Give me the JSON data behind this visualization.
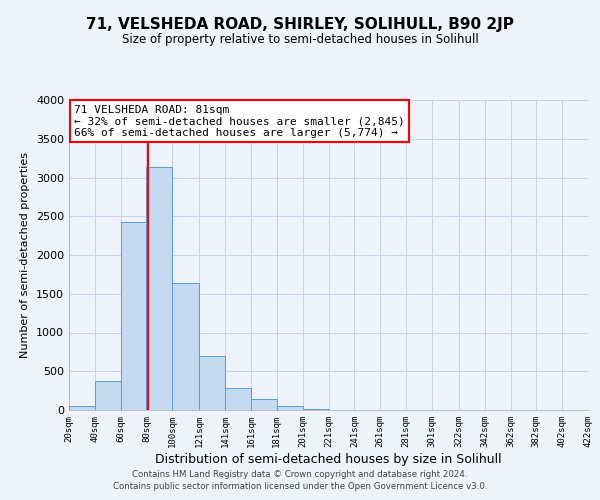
{
  "title": "71, VELSHEDA ROAD, SHIRLEY, SOLIHULL, B90 2JP",
  "subtitle": "Size of property relative to semi-detached houses in Solihull",
  "xlabel": "Distribution of semi-detached houses by size in Solihull",
  "ylabel": "Number of semi-detached properties",
  "bin_edges": [
    20,
    40,
    60,
    80,
    100,
    121,
    141,
    161,
    181,
    201,
    221,
    241,
    261,
    281,
    301,
    322,
    342,
    362,
    382,
    402,
    422
  ],
  "bin_heights": [
    50,
    370,
    2420,
    3140,
    1640,
    700,
    290,
    140,
    55,
    10,
    0,
    0,
    0,
    0,
    0,
    0,
    0,
    0,
    0,
    0
  ],
  "bar_color": "#c5d9f0",
  "bar_edge_color": "#5b9bd5",
  "grid_color": "#c8d4e8",
  "property_line_x": 81,
  "property_line_color": "red",
  "annotation_title": "71 VELSHEDA ROAD: 81sqm",
  "annotation_line1": "← 32% of semi-detached houses are smaller (2,845)",
  "annotation_line2": "66% of semi-detached houses are larger (5,774) →",
  "annotation_box_color": "white",
  "annotation_box_edge": "red",
  "ylim": [
    0,
    4000
  ],
  "yticks": [
    0,
    500,
    1000,
    1500,
    2000,
    2500,
    3000,
    3500,
    4000
  ],
  "xtick_labels": [
    "20sqm",
    "40sqm",
    "60sqm",
    "80sqm",
    "100sqm",
    "121sqm",
    "141sqm",
    "161sqm",
    "181sqm",
    "201sqm",
    "221sqm",
    "241sqm",
    "261sqm",
    "281sqm",
    "301sqm",
    "322sqm",
    "342sqm",
    "362sqm",
    "382sqm",
    "402sqm",
    "422sqm"
  ],
  "footer1": "Contains HM Land Registry data © Crown copyright and database right 2024.",
  "footer2": "Contains public sector information licensed under the Open Government Licence v3.0.",
  "background_color": "#edf2fb"
}
